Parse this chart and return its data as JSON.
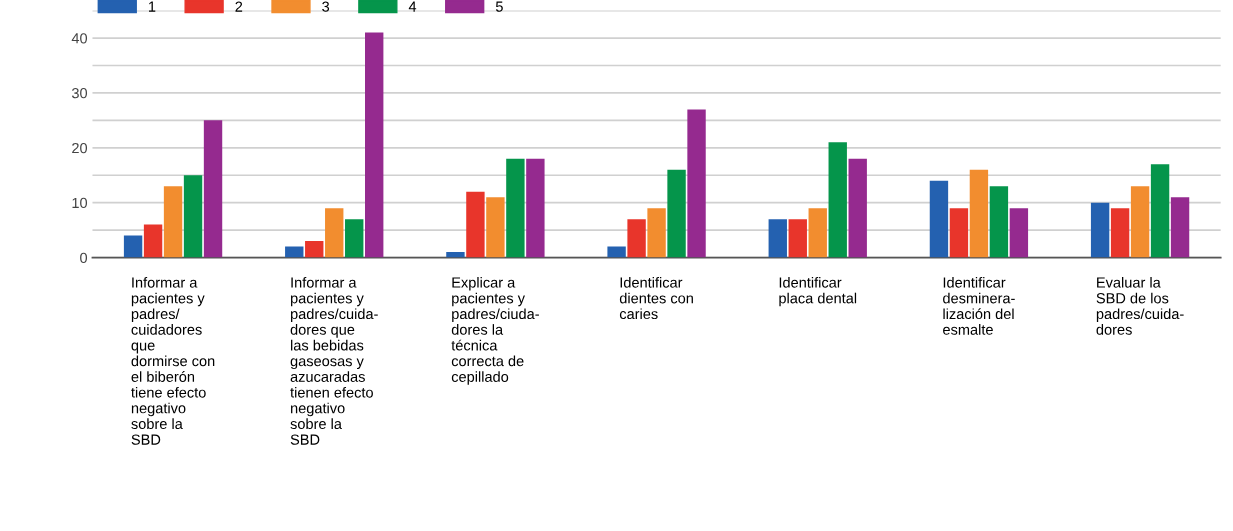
{
  "chart_data": {
    "type": "bar",
    "categories": [
      "Informar a\npacientes y\npadres/\ncuidadores\nque\ndormirse con\nel biberón\ntiene efecto\nnegativo\nsobre la\nSBD",
      "Informar a\npacientes y\npadres/cuida-\ndores que\nlas bebidas\ngaseosas y\nazucaradas\ntienen efecto\nnegativo\nsobre la\nSBD",
      "Explicar a\npacientes y\npadres/ciuda-\ndores la\ntécnica\ncorrecta de\ncepillado",
      "Identificar\ndientes con\ncaries",
      "Identificar\nplaca dental",
      "Identificar\ndesminera-\nlización del\nesmalte",
      "Evaluar la\nSBD de los\npadres/cuida-\ndores"
    ],
    "series": [
      {
        "name": "1",
        "color": "#2461b0",
        "values": [
          4,
          2,
          1,
          2,
          7,
          14,
          10
        ]
      },
      {
        "name": "2",
        "color": "#e8352b",
        "values": [
          6,
          3,
          12,
          7,
          7,
          9,
          9
        ]
      },
      {
        "name": "3",
        "color": "#f28d2f",
        "values": [
          13,
          9,
          11,
          9,
          9,
          16,
          13
        ]
      },
      {
        "name": "4",
        "color": "#05954b",
        "values": [
          15,
          7,
          18,
          16,
          21,
          13,
          17
        ]
      },
      {
        "name": "5",
        "color": "#952a8f",
        "values": [
          25,
          41,
          18,
          27,
          18,
          9,
          11
        ]
      }
    ],
    "ylim": [
      0,
      45
    ],
    "yticks": [
      0,
      {
        "value": 5,
        "label": null
      },
      10,
      {
        "value": 15,
        "label": null
      },
      20,
      {
        "value": 25,
        "label": null
      },
      30,
      {
        "value": 35,
        "label": null
      },
      40,
      {
        "value": 45,
        "label": null
      }
    ],
    "grid": "y",
    "legend": "top left"
  }
}
